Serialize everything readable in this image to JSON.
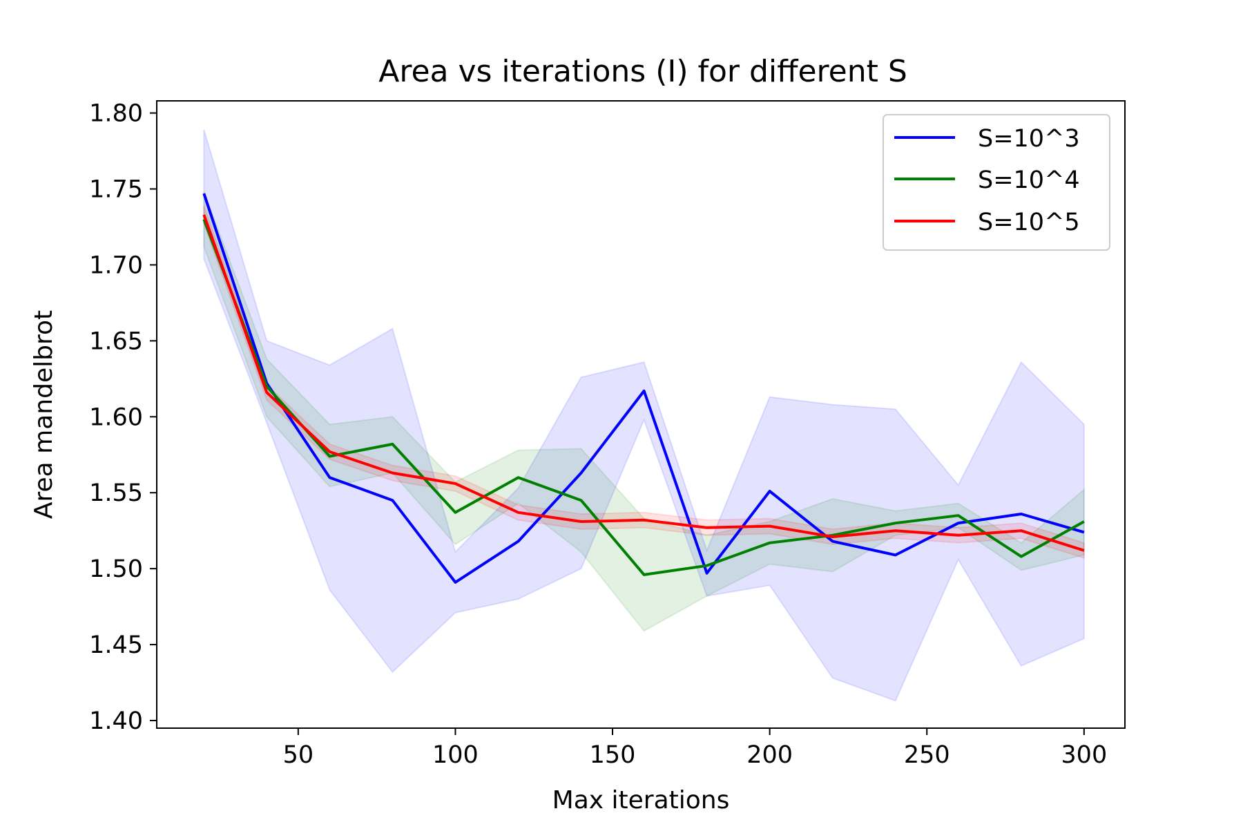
{
  "chart_data": {
    "type": "line",
    "title": "Area vs iterations (I) for different S",
    "xlabel": "Max iterations",
    "ylabel": "Area mandelbrot",
    "xlim": [
      5,
      313
    ],
    "ylim": [
      1.395,
      1.808
    ],
    "xticks": [
      50,
      100,
      150,
      200,
      250,
      300
    ],
    "yticks": [
      1.4,
      1.45,
      1.5,
      1.55,
      1.6,
      1.65,
      1.7,
      1.75,
      1.8
    ],
    "x": [
      20,
      40,
      60,
      80,
      100,
      120,
      140,
      160,
      180,
      200,
      220,
      240,
      260,
      280,
      300
    ],
    "legend_position": "upper right",
    "grid": false,
    "series": [
      {
        "name": "S=10^3",
        "color": "#0000ff",
        "band_color": "#0000ff",
        "values": [
          1.747,
          1.622,
          1.56,
          1.545,
          1.491,
          1.518,
          1.563,
          1.617,
          1.497,
          1.551,
          1.518,
          1.509,
          1.53,
          1.536,
          1.524
        ],
        "lower": [
          1.704,
          1.596,
          1.486,
          1.432,
          1.471,
          1.48,
          1.5,
          1.598,
          1.482,
          1.489,
          1.428,
          1.413,
          1.506,
          1.436,
          1.454
        ],
        "upper": [
          1.789,
          1.65,
          1.634,
          1.658,
          1.511,
          1.553,
          1.626,
          1.636,
          1.512,
          1.613,
          1.608,
          1.605,
          1.555,
          1.636,
          1.595
        ]
      },
      {
        "name": "S=10^4",
        "color": "#008000",
        "band_color": "#008000",
        "values": [
          1.73,
          1.62,
          1.574,
          1.582,
          1.537,
          1.56,
          1.545,
          1.496,
          1.502,
          1.517,
          1.522,
          1.53,
          1.535,
          1.508,
          1.531
        ],
        "lower": [
          1.712,
          1.6,
          1.554,
          1.563,
          1.516,
          1.543,
          1.511,
          1.459,
          1.482,
          1.503,
          1.498,
          1.522,
          1.527,
          1.499,
          1.509
        ],
        "upper": [
          1.748,
          1.638,
          1.595,
          1.6,
          1.557,
          1.578,
          1.579,
          1.533,
          1.522,
          1.531,
          1.546,
          1.538,
          1.543,
          1.517,
          1.552
        ]
      },
      {
        "name": "S=10^5",
        "color": "#ff0000",
        "band_color": "#ff0000",
        "values": [
          1.733,
          1.616,
          1.577,
          1.563,
          1.556,
          1.537,
          1.531,
          1.532,
          1.527,
          1.528,
          1.521,
          1.525,
          1.522,
          1.525,
          1.512
        ],
        "lower": [
          1.727,
          1.611,
          1.572,
          1.558,
          1.551,
          1.532,
          1.526,
          1.527,
          1.522,
          1.523,
          1.516,
          1.52,
          1.517,
          1.52,
          1.507
        ],
        "upper": [
          1.739,
          1.621,
          1.582,
          1.568,
          1.561,
          1.542,
          1.536,
          1.537,
          1.532,
          1.533,
          1.526,
          1.53,
          1.527,
          1.53,
          1.517
        ]
      }
    ]
  }
}
